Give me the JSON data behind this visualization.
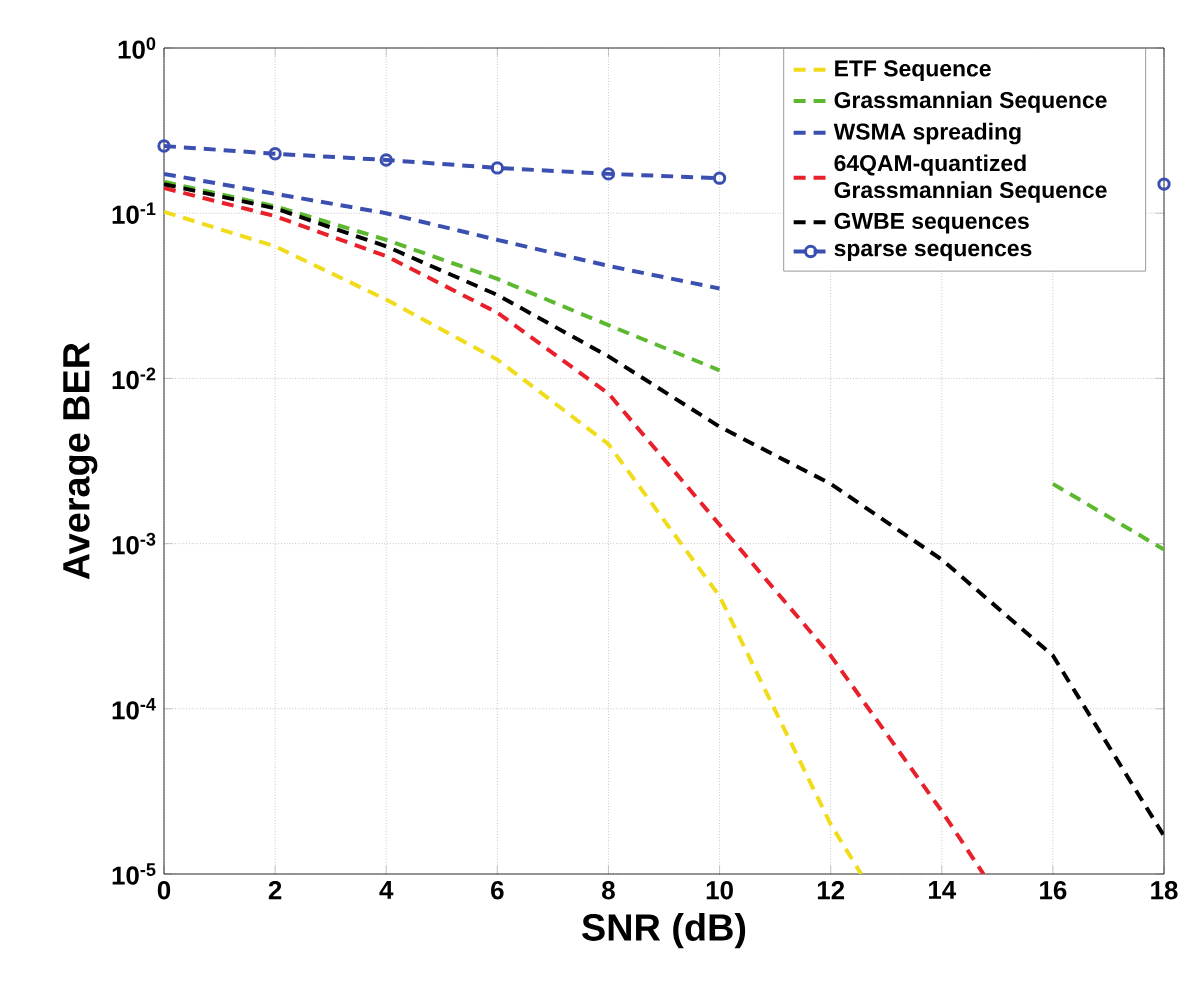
{
  "chart_data": {
    "type": "line",
    "xlabel": "SNR (dB)",
    "ylabel": "Average BER",
    "log": "y",
    "grid": true,
    "legend": "top right",
    "line_style": "dashed",
    "xlim": [
      0,
      18
    ],
    "xticks": [
      0,
      2,
      4,
      6,
      8,
      10,
      12,
      14,
      16,
      18
    ],
    "ylim": [
      1e-05,
      1
    ],
    "yticks": [
      {
        "value": 1e-05,
        "label": "10$^{-5}$"
      },
      {
        "value": 0.0001,
        "label": "10$^{-4}$"
      },
      {
        "value": 0.001,
        "label": "10$^{-3}$"
      },
      {
        "value": 0.01,
        "label": "10$^{-2}$"
      },
      {
        "value": 0.1,
        "label": "10$^{-1}$"
      },
      {
        "value": 1,
        "label": "10$^{0}$"
      }
    ],
    "series": [
      {
        "name": "ETF Sequence",
        "color": "#f0dc1a",
        "marker": "none",
        "x": [
          0,
          2,
          4,
          6,
          8,
          10,
          12,
          12.55
        ],
        "values": [
          0.102,
          0.063,
          0.03,
          0.013,
          0.004,
          0.00048,
          2e-05,
          1e-05
        ]
      },
      {
        "name": "Grassmannian Sequence",
        "color": "#5cb82e",
        "marker": "none",
        "x": [
          0,
          2,
          4,
          6,
          8,
          10,
          12,
          14,
          16,
          18
        ],
        "values": [
          0.155,
          0.11,
          0.069,
          0.04,
          0.021,
          0.0112,
          null,
          null,
          0.0023,
          0.00092
        ]
      },
      {
        "name": "WSMA spreading",
        "color": "#3a4fb0",
        "marker": "none",
        "x": [
          0,
          2,
          4,
          6,
          8,
          10
        ],
        "values": [
          0.173,
          0.131,
          0.1,
          0.069,
          0.048,
          0.035
        ]
      },
      {
        "name": "64QAM-quantized Grassmannian Sequence",
        "color": "#e8202a",
        "marker": "none",
        "x": [
          0,
          2,
          4,
          6,
          8,
          10,
          12,
          14,
          14.75
        ],
        "values": [
          0.142,
          0.096,
          0.055,
          0.025,
          0.0081,
          0.0013,
          0.00021,
          2.4e-05,
          1e-05
        ]
      },
      {
        "name": "GWBE sequences",
        "color": "#000000",
        "marker": "none",
        "x": [
          0,
          2,
          4,
          6,
          8,
          10,
          12,
          14,
          16,
          18
        ],
        "values": [
          0.15,
          0.107,
          0.063,
          0.032,
          0.0136,
          0.0051,
          0.0023,
          0.0008,
          0.00021,
          1.7e-05
        ]
      },
      {
        "name": "sparse sequences",
        "color": "#3a4fb0",
        "marker": "circle",
        "x": [
          0,
          2,
          4,
          6,
          8,
          10,
          12,
          14,
          16,
          18
        ],
        "values": [
          0.255,
          0.229,
          0.21,
          0.188,
          0.173,
          0.163,
          null,
          null,
          null,
          0.15
        ]
      }
    ]
  }
}
